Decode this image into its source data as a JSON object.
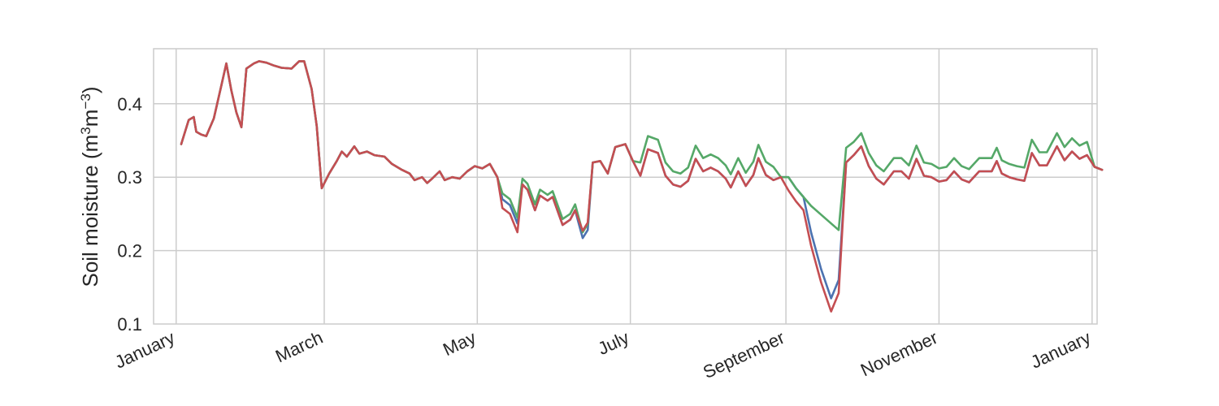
{
  "chart_data": {
    "type": "line",
    "title": "",
    "xlabel": "",
    "ylabel": "Soil moisture (m",
    "ylabel_sup1": "3",
    "ylabel_mid": "m",
    "ylabel_sup2": "−3",
    "ylabel_end": ")",
    "xlim": [
      "2017-12-23",
      "2019-01-03"
    ],
    "ylim": [
      0.1,
      0.475
    ],
    "grid": true,
    "legend": "none",
    "x_ticks": [
      {
        "date": "2018-01-01",
        "label": "January"
      },
      {
        "date": "2018-03-01",
        "label": "March"
      },
      {
        "date": "2018-05-01",
        "label": "May"
      },
      {
        "date": "2018-07-01",
        "label": "July"
      },
      {
        "date": "2018-09-01",
        "label": "September"
      },
      {
        "date": "2018-11-01",
        "label": "November"
      },
      {
        "date": "2019-01-01",
        "label": "January"
      }
    ],
    "y_ticks": [
      {
        "value": 0.1,
        "label": "0.1"
      },
      {
        "value": 0.2,
        "label": "0.2"
      },
      {
        "value": 0.3,
        "label": "0.3"
      },
      {
        "value": 0.4,
        "label": "0.4"
      }
    ],
    "series": [
      {
        "color": "#4c72b0",
        "points": [
          [
            "2018-01-03",
            0.345
          ],
          [
            "2018-01-06",
            0.378
          ],
          [
            "2018-01-08",
            0.382
          ],
          [
            "2018-01-09",
            0.362
          ],
          [
            "2018-01-11",
            0.358
          ],
          [
            "2018-01-13",
            0.356
          ],
          [
            "2018-01-16",
            0.38
          ],
          [
            "2018-01-19",
            0.425
          ],
          [
            "2018-01-21",
            0.455
          ],
          [
            "2018-01-23",
            0.418
          ],
          [
            "2018-01-25",
            0.388
          ],
          [
            "2018-01-27",
            0.368
          ],
          [
            "2018-01-29",
            0.448
          ],
          [
            "2018-02-01",
            0.455
          ],
          [
            "2018-02-03",
            0.458
          ],
          [
            "2018-02-06",
            0.456
          ],
          [
            "2018-02-09",
            0.452
          ],
          [
            "2018-02-12",
            0.449
          ],
          [
            "2018-02-16",
            0.448
          ],
          [
            "2018-02-19",
            0.458
          ],
          [
            "2018-02-21",
            0.458
          ],
          [
            "2018-02-24",
            0.42
          ],
          [
            "2018-02-26",
            0.37
          ],
          [
            "2018-02-28",
            0.285
          ],
          [
            "2018-03-03",
            0.305
          ],
          [
            "2018-03-06",
            0.322
          ],
          [
            "2018-03-08",
            0.335
          ],
          [
            "2018-03-10",
            0.328
          ],
          [
            "2018-03-13",
            0.342
          ],
          [
            "2018-03-15",
            0.332
          ],
          [
            "2018-03-18",
            0.335
          ],
          [
            "2018-03-21",
            0.33
          ],
          [
            "2018-03-25",
            0.328
          ],
          [
            "2018-03-28",
            0.318
          ],
          [
            "2018-04-01",
            0.31
          ],
          [
            "2018-04-04",
            0.305
          ],
          [
            "2018-04-06",
            0.296
          ],
          [
            "2018-04-09",
            0.3
          ],
          [
            "2018-04-11",
            0.292
          ],
          [
            "2018-04-13",
            0.298
          ],
          [
            "2018-04-16",
            0.308
          ],
          [
            "2018-04-18",
            0.296
          ],
          [
            "2018-04-21",
            0.3
          ],
          [
            "2018-04-24",
            0.298
          ],
          [
            "2018-04-27",
            0.308
          ],
          [
            "2018-04-30",
            0.315
          ],
          [
            "2018-05-03",
            0.312
          ],
          [
            "2018-05-06",
            0.318
          ],
          [
            "2018-05-09",
            0.3
          ],
          [
            "2018-05-11",
            0.27
          ],
          [
            "2018-05-14",
            0.262
          ],
          [
            "2018-05-17",
            0.237
          ],
          [
            "2018-05-19",
            0.29
          ],
          [
            "2018-05-21",
            0.283
          ],
          [
            "2018-05-24",
            0.255
          ],
          [
            "2018-05-26",
            0.275
          ],
          [
            "2018-05-29",
            0.268
          ],
          [
            "2018-05-31",
            0.273
          ],
          [
            "2018-06-04",
            0.235
          ],
          [
            "2018-06-07",
            0.242
          ],
          [
            "2018-06-09",
            0.255
          ],
          [
            "2018-06-12",
            0.217
          ],
          [
            "2018-06-14",
            0.228
          ],
          [
            "2018-06-16",
            0.32
          ],
          [
            "2018-06-19",
            0.322
          ],
          [
            "2018-06-22",
            0.305
          ],
          [
            "2018-06-25",
            0.341
          ],
          [
            "2018-06-29",
            0.345
          ],
          [
            "2018-07-02",
            0.322
          ],
          [
            "2018-07-05",
            0.302
          ],
          [
            "2018-07-08",
            0.338
          ],
          [
            "2018-07-12",
            0.333
          ],
          [
            "2018-07-15",
            0.302
          ],
          [
            "2018-07-18",
            0.29
          ],
          [
            "2018-07-21",
            0.287
          ],
          [
            "2018-07-24",
            0.295
          ],
          [
            "2018-07-27",
            0.325
          ],
          [
            "2018-07-30",
            0.308
          ],
          [
            "2018-08-02",
            0.313
          ],
          [
            "2018-08-05",
            0.308
          ],
          [
            "2018-08-08",
            0.298
          ],
          [
            "2018-08-10",
            0.286
          ],
          [
            "2018-08-13",
            0.308
          ],
          [
            "2018-08-16",
            0.288
          ],
          [
            "2018-08-19",
            0.303
          ],
          [
            "2018-08-21",
            0.326
          ],
          [
            "2018-08-24",
            0.303
          ],
          [
            "2018-08-27",
            0.296
          ],
          [
            "2018-08-30",
            0.3
          ],
          [
            "2018-09-02",
            0.3
          ],
          [
            "2018-09-05",
            0.285
          ],
          [
            "2018-09-08",
            0.273
          ],
          [
            "2018-09-11",
            0.225
          ],
          [
            "2018-09-15",
            0.175
          ],
          [
            "2018-09-19",
            0.135
          ],
          [
            "2018-09-22",
            0.16
          ],
          [
            "2018-09-25",
            0.32
          ],
          [
            "2018-09-28",
            0.33
          ],
          [
            "2018-10-01",
            0.342
          ],
          [
            "2018-10-04",
            0.315
          ],
          [
            "2018-10-07",
            0.298
          ],
          [
            "2018-10-10",
            0.29
          ],
          [
            "2018-10-14",
            0.308
          ],
          [
            "2018-10-17",
            0.308
          ],
          [
            "2018-10-20",
            0.298
          ],
          [
            "2018-10-23",
            0.325
          ],
          [
            "2018-10-26",
            0.302
          ],
          [
            "2018-10-29",
            0.3
          ],
          [
            "2018-11-01",
            0.294
          ],
          [
            "2018-11-04",
            0.296
          ],
          [
            "2018-11-07",
            0.308
          ],
          [
            "2018-11-10",
            0.297
          ],
          [
            "2018-11-13",
            0.293
          ],
          [
            "2018-11-17",
            0.308
          ],
          [
            "2018-11-20",
            0.308
          ],
          [
            "2018-11-22",
            0.308
          ],
          [
            "2018-11-24",
            0.322
          ],
          [
            "2018-11-26",
            0.305
          ],
          [
            "2018-11-29",
            0.3
          ],
          [
            "2018-12-02",
            0.297
          ],
          [
            "2018-12-05",
            0.295
          ],
          [
            "2018-12-08",
            0.333
          ],
          [
            "2018-12-11",
            0.316
          ],
          [
            "2018-12-14",
            0.316
          ],
          [
            "2018-12-18",
            0.342
          ],
          [
            "2018-12-21",
            0.323
          ],
          [
            "2018-12-24",
            0.335
          ],
          [
            "2018-12-27",
            0.325
          ],
          [
            "2018-12-30",
            0.33
          ],
          [
            "2019-01-02",
            0.314
          ],
          [
            "2019-01-05",
            0.31
          ]
        ]
      },
      {
        "color": "#55a868",
        "points": []
      },
      {
        "color": "#c44e52",
        "points": []
      }
    ]
  }
}
